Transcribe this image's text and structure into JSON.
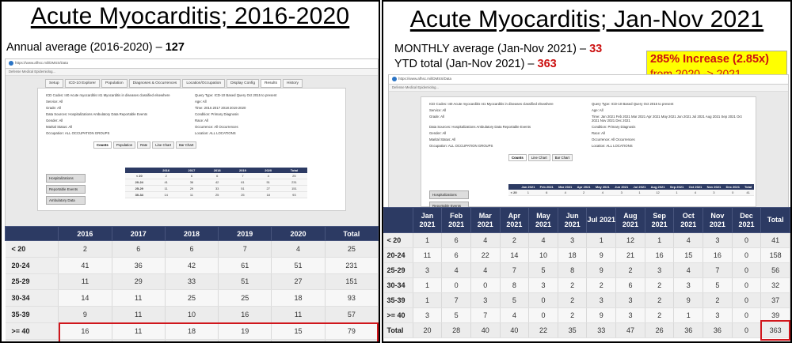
{
  "left": {
    "title": "Acute Myocarditis; 2016-2020",
    "stat": {
      "label": "Annual average (2016-2020) – ",
      "value": "127"
    },
    "browser": {
      "url": "https://www.afhsc.mil/DMSS/Data",
      "bookmark": "Defense Medical Epidemiolog...",
      "tabs": [
        "Setup",
        "ICD-10 Explorer",
        "Population",
        "Diagnoses & Occurrences",
        "Location/Occupation",
        "Display Config",
        "Results",
        "History"
      ],
      "query": [
        [
          "ICD Codes: I40 Acute myocarditis I41 Myocarditis in diseases classified elsewhere",
          "Query Type: ICD-10 Based Query Oct 2015 to present"
        ],
        [
          "Service: All",
          "Age: All"
        ],
        [
          "Grade: All",
          "Time: 2016 2017 2018 2019 2020"
        ],
        [
          "Data Sources: Hospitalizations Ambulatory Data Reportable Events",
          "Condition: Primary Diagnosis"
        ],
        [
          "Gender: All",
          "Race: All"
        ],
        [
          "Marital Status: All",
          "Occurrence: All Occurrences"
        ],
        [
          "Occupation: ALL OCCUPATION GROUPS",
          "Location: ALL LOCATIONS"
        ]
      ],
      "subtabs": [
        "Counts",
        "Population",
        "Rate",
        "Line Chart",
        "Bar Chart"
      ],
      "side": [
        "Hospitalizations",
        "Reportable Events",
        "Ambulatory Data"
      ]
    },
    "table": {
      "headers": [
        "",
        "2016",
        "2017",
        "2018",
        "2019",
        "2020",
        "Total"
      ],
      "rows": [
        [
          "< 20",
          "2",
          "6",
          "6",
          "7",
          "4",
          "25"
        ],
        [
          "20-24",
          "41",
          "36",
          "42",
          "61",
          "51",
          "231"
        ],
        [
          "25-29",
          "11",
          "29",
          "33",
          "51",
          "27",
          "151"
        ],
        [
          "30-34",
          "14",
          "11",
          "25",
          "25",
          "18",
          "93"
        ],
        [
          "35-39",
          "9",
          "11",
          "10",
          "16",
          "11",
          "57"
        ],
        [
          ">= 40",
          "16",
          "11",
          "18",
          "19",
          "15",
          "79"
        ],
        [
          "Total",
          "93",
          "104",
          "134",
          "179",
          "126",
          "636"
        ]
      ]
    }
  },
  "right": {
    "title": "Acute Myocarditis; Jan-Nov 2021",
    "monthly": {
      "label": "MONTHLY average (Jan-Nov 2021) – ",
      "value": "33"
    },
    "ytd": {
      "label": "YTD total (Jan-Nov 2021) – ",
      "value": "363"
    },
    "callout": {
      "line1": "285% Increase (2.85x)",
      "line2": "from 2020 -> 2021"
    },
    "browser": {
      "url": "https://www.afhsc.mil/DMSS/Data",
      "bookmark": "Defense Medical Epidemiolog...",
      "query": [
        [
          "ICD Codes: I40 Acute myocarditis I41 Myocarditis in diseases classified elsewhere",
          "Query Type: ICD-10 Based Query Oct 2015 to present"
        ],
        [
          "Service: All",
          "Age: All"
        ],
        [
          "Grade: All",
          "Time: Jan 2021 Feb 2021 Mar 2021 Apr 2021 May 2021 Jun 2021 Jul 2021 Aug 2021 Sep 2021 Oct 2021 Nov 2021 Dec 2021"
        ],
        [
          "Data Sources: Hospitalizations Ambulatory Data Reportable Events",
          "Condition: Primary Diagnosis"
        ],
        [
          "Gender: All",
          "Race: All"
        ],
        [
          "Marital Status: All",
          "Occurrence: All Occurrences"
        ],
        [
          "Occupation: ALL OCCUPATION GROUPS",
          "Location: ALL LOCATIONS"
        ]
      ],
      "subtabs": [
        "Counts",
        "Line Chart",
        "Bar Chart"
      ],
      "side": [
        "Hospitalizations",
        "Reportable Events"
      ]
    },
    "table": {
      "headers": [
        "",
        "Jan 2021",
        "Feb 2021",
        "Mar 2021",
        "Apr 2021",
        "May 2021",
        "Jun 2021",
        "Jul 2021",
        "Aug 2021",
        "Sep 2021",
        "Oct 2021",
        "Nov 2021",
        "Dec 2021",
        "Total"
      ],
      "rows": [
        [
          "< 20",
          "1",
          "6",
          "4",
          "2",
          "4",
          "3",
          "1",
          "12",
          "1",
          "4",
          "3",
          "0",
          "41"
        ],
        [
          "20-24",
          "11",
          "6",
          "22",
          "14",
          "10",
          "18",
          "9",
          "21",
          "16",
          "15",
          "16",
          "0",
          "158"
        ],
        [
          "25-29",
          "3",
          "4",
          "4",
          "7",
          "5",
          "8",
          "9",
          "2",
          "3",
          "4",
          "7",
          "0",
          "56"
        ],
        [
          "30-34",
          "1",
          "0",
          "0",
          "8",
          "3",
          "2",
          "2",
          "6",
          "2",
          "3",
          "5",
          "0",
          "32"
        ],
        [
          "35-39",
          "1",
          "7",
          "3",
          "5",
          "0",
          "2",
          "3",
          "3",
          "2",
          "9",
          "2",
          "0",
          "37"
        ],
        [
          ">= 40",
          "3",
          "5",
          "7",
          "4",
          "0",
          "2",
          "9",
          "3",
          "2",
          "1",
          "3",
          "0",
          "39"
        ],
        [
          "Total",
          "20",
          "28",
          "40",
          "40",
          "22",
          "35",
          "33",
          "47",
          "26",
          "36",
          "36",
          "0",
          "363"
        ]
      ]
    }
  }
}
